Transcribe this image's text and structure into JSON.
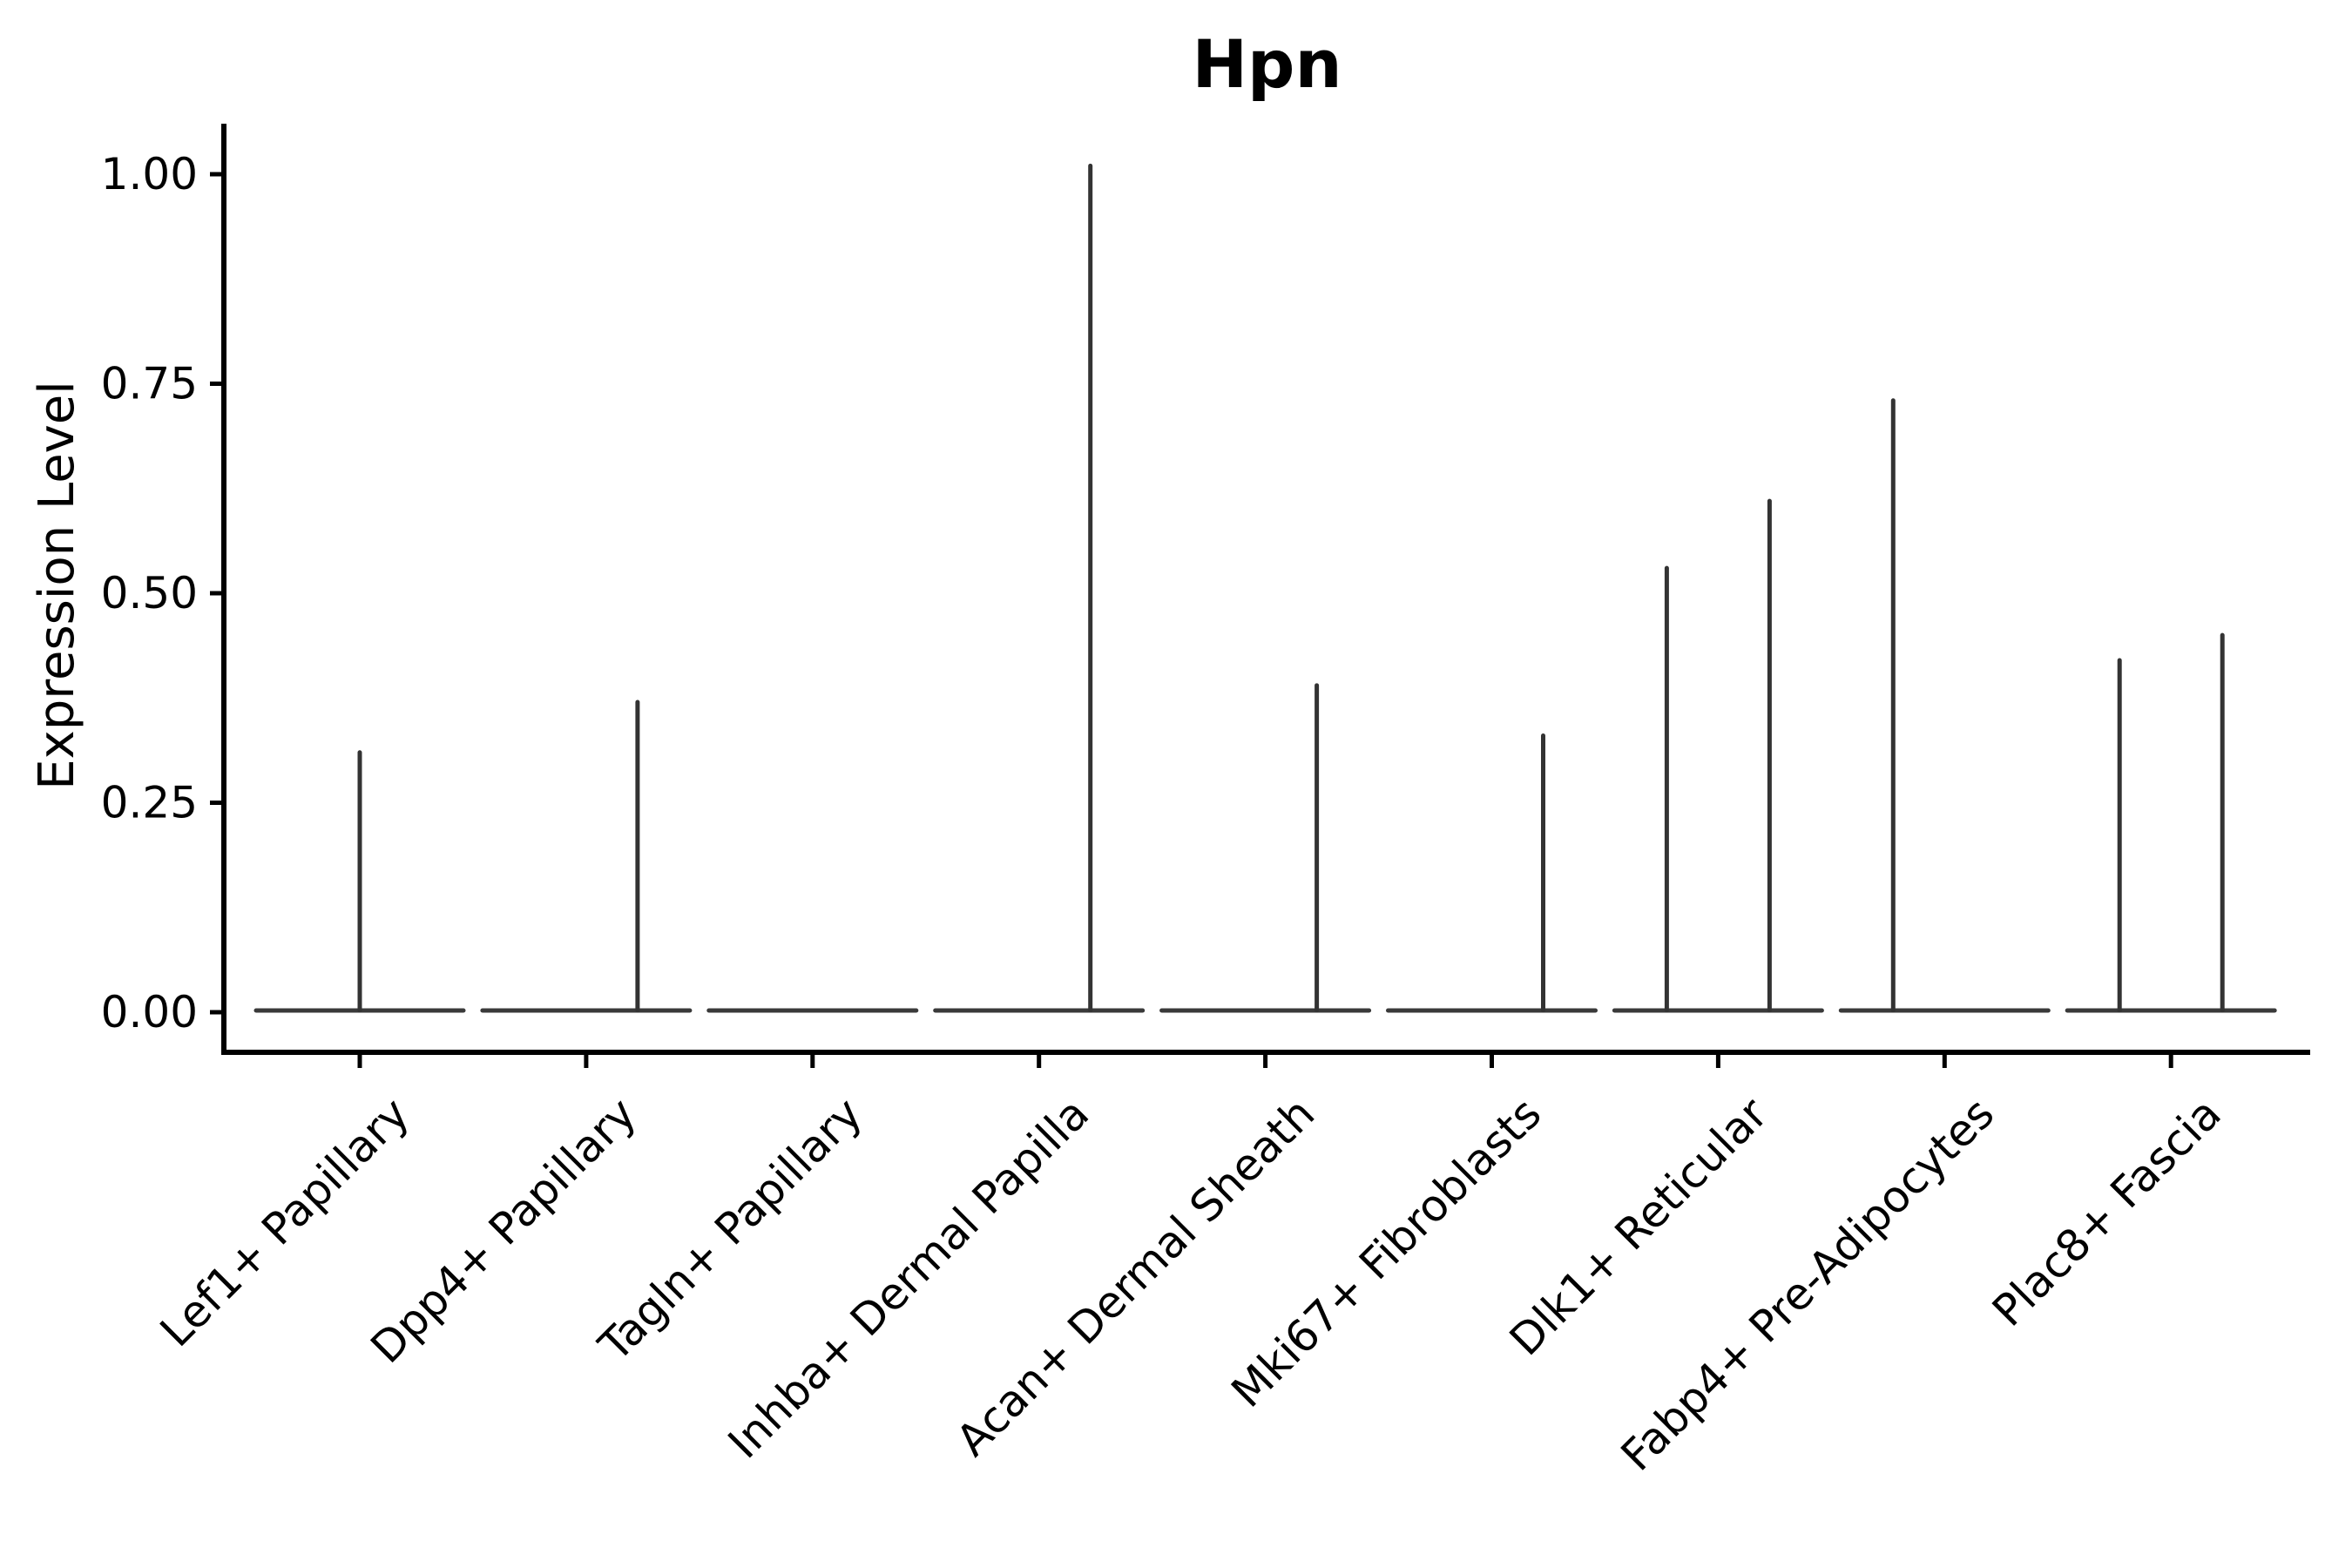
{
  "title": "Hpn",
  "axes": {
    "y_label": "Expression Level",
    "y_tick_labels": [
      "0.00",
      "0.25",
      "0.50",
      "0.75",
      "1.00"
    ],
    "y_tick_values": [
      0.0,
      0.25,
      0.5,
      0.75,
      1.0
    ]
  },
  "chart_data": {
    "type": "violin",
    "title": "Hpn",
    "xlabel": "",
    "ylabel": "Expression Level",
    "ylim": [
      0,
      1.05
    ],
    "grid": false,
    "legend": "none",
    "y_ticks": [
      0.0,
      0.25,
      0.5,
      0.75,
      1.0
    ],
    "y_tick_labels": [
      "0.00",
      "0.25",
      "0.50",
      "0.75",
      "1.00"
    ],
    "categories": [
      "Lef1+ Papillary",
      "Dpp4+ Papillary",
      "Tagln+ Papillary",
      "Inhba+ Dermal Papilla",
      "Acan+ Dermal Sheath",
      "Mki67+ Fibroblasts",
      "Dlk1+ Reticular",
      "Fabp4+ Pre-Adipocytes",
      "Plac8+ Fascia"
    ],
    "violins": [
      {
        "category": "Lef1+ Papillary",
        "spikes": [
          {
            "side": "center",
            "max": 0.31
          }
        ]
      },
      {
        "category": "Dpp4+ Papillary",
        "spikes": [
          {
            "side": "right",
            "max": 0.37
          }
        ]
      },
      {
        "category": "Tagln+ Papillary",
        "spikes": []
      },
      {
        "category": "Inhba+ Dermal Papilla",
        "spikes": [
          {
            "side": "right",
            "max": 1.01
          }
        ]
      },
      {
        "category": "Acan+ Dermal Sheath",
        "spikes": [
          {
            "side": "right",
            "max": 0.39
          }
        ]
      },
      {
        "category": "Mki67+ Fibroblasts",
        "spikes": [
          {
            "side": "right",
            "max": 0.33
          }
        ]
      },
      {
        "category": "Dlk1+ Reticular",
        "spikes": [
          {
            "side": "left",
            "max": 0.53
          },
          {
            "side": "right",
            "max": 0.61
          }
        ]
      },
      {
        "category": "Fabp4+ Pre-Adipocytes",
        "spikes": [
          {
            "side": "left",
            "max": 0.73
          }
        ]
      },
      {
        "category": "Plac8+ Fascia",
        "spikes": [
          {
            "side": "left",
            "max": 0.42
          },
          {
            "side": "right",
            "max": 0.45
          }
        ]
      }
    ],
    "colors": {
      "violin_line": "#333333",
      "baseline": "#3a3a3a",
      "axis": "#000000",
      "text": "#000000",
      "background": "#ffffff"
    }
  }
}
